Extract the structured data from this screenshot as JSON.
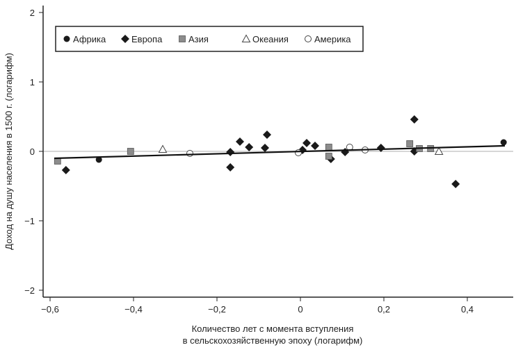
{
  "chart_data": {
    "type": "scatter",
    "title": "",
    "xlabel_lines": [
      "Количество лет с момента вступления",
      "в сельскохозяйственную эпоху (логарифм)"
    ],
    "ylabel": "Доход на душу населения в 1500 г. (логарифм)",
    "xlim": [
      -0.62,
      0.5
    ],
    "ylim": [
      -2.1,
      2.1
    ],
    "xticks": [
      -0.6,
      -0.4,
      -0.2,
      0,
      0.2,
      0.4
    ],
    "xtick_labels": [
      "−0,6",
      "−0,4",
      "−0,2",
      "0",
      "0,2",
      "0,4"
    ],
    "yticks": [
      2,
      1,
      0,
      -1,
      -2
    ],
    "ytick_labels": [
      "2",
      "1",
      "0",
      "−1",
      "−2"
    ],
    "legend_position": "top-left",
    "legend": [
      {
        "key": "africa",
        "label": "Африка",
        "marker": "circle-filled"
      },
      {
        "key": "europe",
        "label": "Европа",
        "marker": "diamond-filled"
      },
      {
        "key": "asia",
        "label": "Азия",
        "marker": "square-gray"
      },
      {
        "key": "oceania",
        "label": "Океания",
        "marker": "triangle-open"
      },
      {
        "key": "america",
        "label": "Америка",
        "marker": "circle-open"
      }
    ],
    "series": [
      {
        "name": "africa",
        "points": [
          [
            -0.483,
            -0.12
          ],
          [
            0.487,
            0.13
          ]
        ]
      },
      {
        "name": "europe",
        "points": [
          [
            -0.562,
            -0.27
          ],
          [
            -0.168,
            -0.01
          ],
          [
            -0.168,
            -0.23
          ],
          [
            -0.145,
            0.14
          ],
          [
            -0.123,
            0.06
          ],
          [
            -0.085,
            0.05
          ],
          [
            -0.08,
            0.24
          ],
          [
            0.005,
            0.02
          ],
          [
            0.015,
            0.12
          ],
          [
            0.035,
            0.08
          ],
          [
            0.073,
            -0.11
          ],
          [
            0.107,
            -0.01
          ],
          [
            0.193,
            0.05
          ],
          [
            0.273,
            0.46
          ],
          [
            0.273,
            0.0
          ],
          [
            0.372,
            -0.47
          ]
        ]
      },
      {
        "name": "asia",
        "points": [
          [
            -0.582,
            -0.14
          ],
          [
            -0.407,
            0.0
          ],
          [
            0.068,
            0.06
          ],
          [
            0.068,
            -0.07
          ],
          [
            0.262,
            0.11
          ],
          [
            0.285,
            0.04
          ],
          [
            0.312,
            0.04
          ]
        ]
      },
      {
        "name": "oceania",
        "points": [
          [
            -0.33,
            0.03
          ],
          [
            0.332,
            0.0
          ]
        ]
      },
      {
        "name": "america",
        "points": [
          [
            -0.265,
            -0.03
          ],
          [
            -0.005,
            -0.02
          ],
          [
            0.118,
            0.06
          ],
          [
            0.155,
            0.02
          ]
        ]
      }
    ],
    "fit_line": {
      "x": [
        -0.59,
        0.49
      ],
      "y": [
        -0.1,
        0.08
      ]
    },
    "zero_line": true,
    "colors": {
      "marker_dark": "#1a1a1a",
      "marker_gray": "#8c8c8c",
      "zero_line": "#c8c8c8"
    }
  }
}
